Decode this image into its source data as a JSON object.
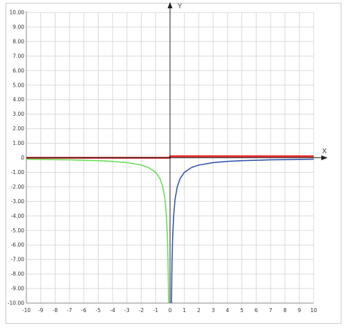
{
  "chart_data": {
    "type": "line",
    "title": "",
    "xlabel": "X",
    "ylabel": "Y",
    "xlim": [
      -10,
      10
    ],
    "ylim": [
      -10,
      10
    ],
    "grid": true,
    "x_ticks": [
      -10,
      -9,
      -8,
      -7,
      -6,
      -5,
      -4,
      -3,
      -2,
      -1,
      0,
      1,
      2,
      3,
      4,
      5,
      6,
      7,
      8,
      9,
      10
    ],
    "x_tick_labels": [
      "-10",
      "-9",
      "-8",
      "-7",
      "-6",
      "-5",
      "-4",
      "-3",
      "-2",
      "-1",
      "0",
      "1",
      "2",
      "3",
      "4",
      "5",
      "6",
      "7",
      "8",
      "9",
      "10"
    ],
    "y_ticks": [
      10,
      9,
      8,
      7,
      6,
      5,
      4,
      3,
      2,
      1,
      0,
      -1,
      -2,
      -3,
      -4,
      -5,
      -6,
      -7,
      -8,
      -9,
      -10
    ],
    "y_tick_labels": [
      "10.00",
      "9.00",
      "8.00",
      "7.00",
      "6.00",
      "5.00",
      "4.00",
      "3.00",
      "2.00",
      "1.00",
      "0",
      "-1.00",
      "-2.00",
      "-3.00",
      "-4.00",
      "-5.00",
      "-6.00",
      "-7.00",
      "-8.00",
      "-9.00",
      "-10.00"
    ],
    "series": [
      {
        "color": "#66dd55",
        "points": [
          [
            -10,
            -0.1
          ],
          [
            -9,
            -0.11
          ],
          [
            -8,
            -0.13
          ],
          [
            -7,
            -0.14
          ],
          [
            -6,
            -0.17
          ],
          [
            -5,
            -0.2
          ],
          [
            -4,
            -0.25
          ],
          [
            -3,
            -0.33
          ],
          [
            -2,
            -0.5
          ],
          [
            -1.5,
            -0.67
          ],
          [
            -1,
            -1
          ],
          [
            -0.7,
            -1.43
          ],
          [
            -0.5,
            -2
          ],
          [
            -0.35,
            -2.86
          ],
          [
            -0.25,
            -4
          ],
          [
            -0.18,
            -5.56
          ],
          [
            -0.14,
            -7.14
          ],
          [
            -0.12,
            -8.33
          ],
          [
            -0.1,
            -10
          ]
        ]
      },
      {
        "color": "#3355aa",
        "points": [
          [
            0.1,
            -10
          ],
          [
            0.12,
            -8.33
          ],
          [
            0.14,
            -7.14
          ],
          [
            0.18,
            -5.56
          ],
          [
            0.25,
            -4
          ],
          [
            0.35,
            -2.86
          ],
          [
            0.5,
            -2
          ],
          [
            0.7,
            -1.43
          ],
          [
            1,
            -1
          ],
          [
            1.5,
            -0.67
          ],
          [
            2,
            -0.5
          ],
          [
            3,
            -0.33
          ],
          [
            4,
            -0.25
          ],
          [
            5,
            -0.2
          ],
          [
            6,
            -0.17
          ],
          [
            7,
            -0.14
          ],
          [
            8,
            -0.13
          ],
          [
            9,
            -0.11
          ],
          [
            10,
            -0.1
          ]
        ]
      },
      {
        "color": "#dd1111",
        "points": [
          [
            -10,
            0
          ],
          [
            0,
            0
          ],
          [
            0,
            0.1
          ],
          [
            10,
            0.1
          ]
        ]
      }
    ]
  }
}
